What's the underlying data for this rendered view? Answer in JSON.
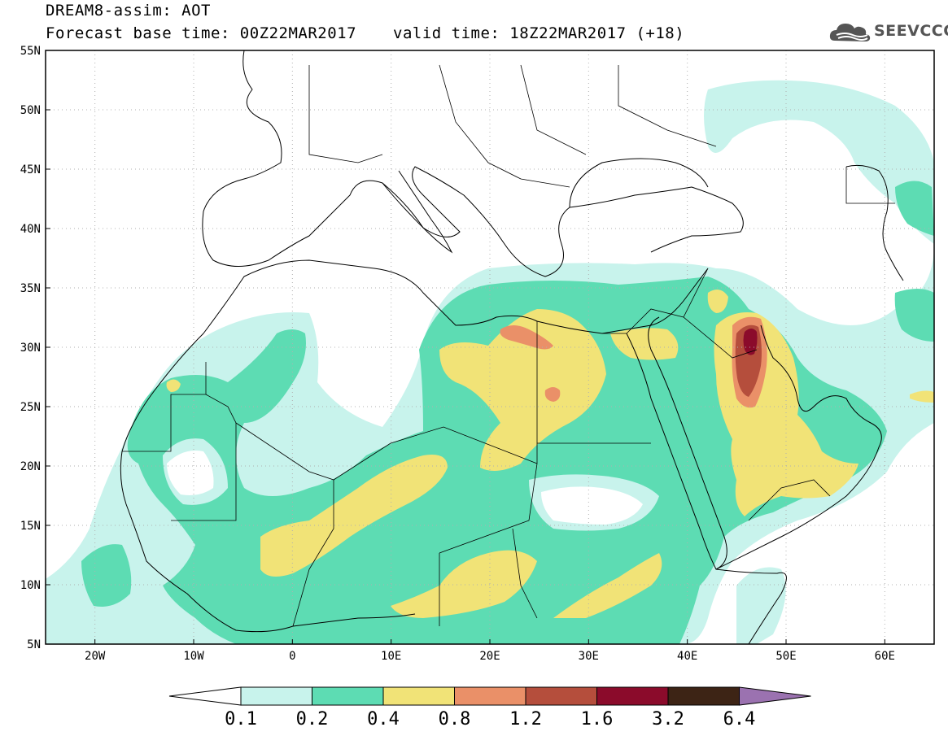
{
  "header": {
    "title": "DREAM8-assim: AOT",
    "base_time": "Forecast base time: 00Z22MAR2017",
    "valid_time": "valid time: 18Z22MAR2017 (+18)",
    "logo_text": "SEEVCCC"
  },
  "map": {
    "lon_range": [
      -25,
      65
    ],
    "lat_range": [
      5,
      55
    ],
    "lat_ticks": [
      "55N",
      "50N",
      "45N",
      "40N",
      "35N",
      "30N",
      "25N",
      "20N",
      "15N",
      "10N",
      "5N"
    ],
    "lon_ticks": [
      "20W",
      "10W",
      "0",
      "10E",
      "20E",
      "30E",
      "40E",
      "50E",
      "60E"
    ],
    "colors": {
      "0.1": "#c8f3ec",
      "0.2": "#5ddcb3",
      "0.4": "#f1e377",
      "0.8": "#ea9068",
      "1.2": "#b54e3c",
      "1.6": "#8b0b2b",
      "3.2": "#3d2415",
      "6.4": "#9b72b0"
    }
  },
  "colorbar": {
    "labels": [
      "0.1",
      "0.2",
      "0.4",
      "0.8",
      "1.2",
      "1.6",
      "3.2",
      "6.4"
    ],
    "colors": [
      "#ffffff",
      "#c8f3ec",
      "#5ddcb3",
      "#f1e377",
      "#ea9068",
      "#b54e3c",
      "#8b0b2b",
      "#3d2415",
      "#9b72b0"
    ]
  }
}
